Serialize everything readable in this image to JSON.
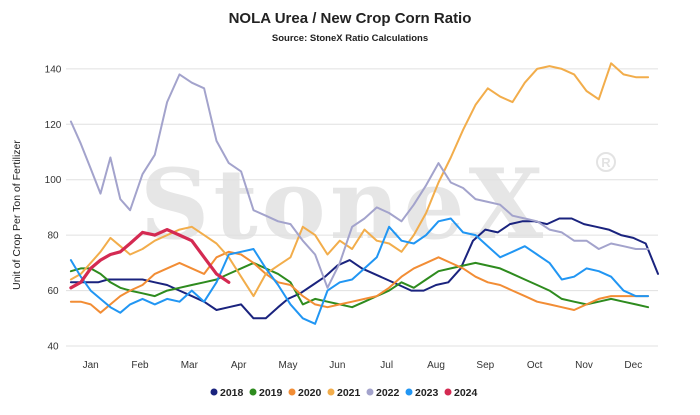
{
  "chart_data": {
    "type": "line",
    "title": "NOLA Urea / New Crop Corn Ratio",
    "subtitle": "Source: StoneX Ratio Calculations",
    "ylabel": "Unit of Crop Per Ton of Fertilizer",
    "xlabel": "",
    "watermark": "StoneX",
    "ylim": [
      40,
      145
    ],
    "yticks": [
      40,
      60,
      80,
      100,
      120,
      140
    ],
    "xlim": [
      0,
      12
    ],
    "x_tick_labels": [
      "Jan",
      "Feb",
      "Mar",
      "Apr",
      "May",
      "Jun",
      "Jul",
      "Aug",
      "Sep",
      "Oct",
      "Nov",
      "Dec"
    ],
    "grid": "horizontal",
    "legend_position": "bottom",
    "series": [
      {
        "name": "2018",
        "color": "#1a237e",
        "x": [
          0.1,
          0.25,
          0.45,
          0.65,
          0.85,
          1.05,
          1.3,
          1.55,
          1.8,
          2.05,
          2.3,
          2.55,
          2.8,
          3.05,
          3.3,
          3.55,
          3.8,
          4.05,
          4.3,
          4.5,
          4.75,
          5.0,
          5.25,
          5.5,
          5.75,
          6.0,
          6.25,
          6.5,
          6.75,
          7.0,
          7.25,
          7.5,
          7.75,
          8.0,
          8.25,
          8.5,
          8.75,
          9.0,
          9.25,
          9.5,
          9.75,
          10.0,
          10.25,
          10.5,
          10.75,
          11.0,
          11.25,
          11.5,
          11.75,
          12.0
        ],
        "y": [
          63,
          63,
          63,
          63,
          64,
          64,
          64,
          64,
          63,
          62,
          60,
          58,
          56,
          53,
          54,
          55,
          50,
          50,
          54,
          57,
          59,
          62,
          65,
          69,
          71,
          68,
          66,
          64,
          62,
          60,
          60,
          62,
          63,
          68,
          78,
          82,
          81,
          84,
          85,
          85,
          84,
          86,
          86,
          84,
          83,
          82,
          80,
          79,
          77,
          66
        ]
      },
      {
        "name": "2019",
        "color": "#2e8b1e",
        "x": [
          0.1,
          0.3,
          0.5,
          0.7,
          0.9,
          1.1,
          1.3,
          1.55,
          1.8,
          2.05,
          2.3,
          2.55,
          2.8,
          3.05,
          3.3,
          3.55,
          3.8,
          4.05,
          4.3,
          4.55,
          4.8,
          5.05,
          5.3,
          5.55,
          5.8,
          6.05,
          6.3,
          6.55,
          6.8,
          7.05,
          7.3,
          7.55,
          7.8,
          8.05,
          8.3,
          8.55,
          8.8,
          9.05,
          9.3,
          9.55,
          9.8,
          10.05,
          10.3,
          10.55,
          10.8,
          11.05,
          11.3,
          11.55,
          11.8
        ],
        "y": [
          67,
          68,
          68,
          66,
          63,
          61,
          60,
          59,
          58,
          60,
          61,
          62,
          63,
          64,
          66,
          68,
          70,
          68,
          66,
          63,
          55,
          57,
          56,
          55,
          54,
          56,
          58,
          60,
          63,
          61,
          64,
          67,
          68,
          69,
          70,
          69,
          68,
          66,
          64,
          62,
          60,
          57,
          56,
          55,
          56,
          57,
          56,
          55,
          54
        ]
      },
      {
        "name": "2020",
        "color": "#f28d35",
        "x": [
          0.1,
          0.3,
          0.5,
          0.7,
          0.9,
          1.1,
          1.3,
          1.55,
          1.8,
          2.05,
          2.3,
          2.55,
          2.8,
          3.05,
          3.3,
          3.55,
          3.8,
          4.05,
          4.3,
          4.55,
          4.8,
          5.05,
          5.3,
          5.55,
          5.8,
          6.05,
          6.3,
          6.55,
          6.8,
          7.05,
          7.3,
          7.55,
          7.8,
          8.05,
          8.3,
          8.55,
          8.8,
          9.05,
          9.3,
          9.55,
          9.8,
          10.05,
          10.3,
          10.55,
          10.8,
          11.05,
          11.3,
          11.55,
          11.8
        ],
        "y": [
          56,
          56,
          55,
          52,
          55,
          58,
          60,
          62,
          66,
          68,
          70,
          68,
          66,
          72,
          74,
          73,
          70,
          66,
          63,
          62,
          58,
          55,
          54,
          55,
          56,
          57,
          58,
          61,
          65,
          68,
          70,
          72,
          70,
          68,
          65,
          63,
          62,
          60,
          58,
          56,
          55,
          54,
          53,
          55,
          57,
          58,
          58,
          58,
          58
        ]
      },
      {
        "name": "2021",
        "color": "#f2ad4b",
        "x": [
          0.1,
          0.3,
          0.5,
          0.7,
          0.9,
          1.1,
          1.3,
          1.55,
          1.8,
          2.05,
          2.3,
          2.55,
          2.8,
          3.05,
          3.3,
          3.55,
          3.8,
          4.05,
          4.3,
          4.55,
          4.8,
          5.05,
          5.3,
          5.55,
          5.8,
          6.05,
          6.3,
          6.55,
          6.8,
          7.05,
          7.3,
          7.55,
          7.8,
          8.05,
          8.3,
          8.55,
          8.8,
          9.05,
          9.3,
          9.55,
          9.8,
          10.05,
          10.3,
          10.55,
          10.8,
          11.05,
          11.3,
          11.55,
          11.8
        ],
        "y": [
          64,
          66,
          70,
          74,
          79,
          76,
          73,
          75,
          78,
          80,
          82,
          83,
          80,
          77,
          72,
          65,
          58,
          66,
          69,
          72,
          83,
          80,
          73,
          78,
          75,
          82,
          78,
          77,
          74,
          80,
          88,
          99,
          108,
          118,
          127,
          133,
          130,
          128,
          135,
          140,
          141,
          140,
          138,
          132,
          129,
          142,
          138,
          137,
          137
        ]
      },
      {
        "name": "2022",
        "color": "#a3a3cc",
        "x": [
          0.1,
          0.3,
          0.5,
          0.7,
          0.9,
          1.1,
          1.3,
          1.55,
          1.8,
          2.05,
          2.3,
          2.55,
          2.8,
          3.05,
          3.3,
          3.55,
          3.8,
          4.05,
          4.3,
          4.55,
          4.8,
          5.05,
          5.3,
          5.55,
          5.8,
          6.05,
          6.3,
          6.55,
          6.8,
          7.05,
          7.3,
          7.55,
          7.8,
          8.05,
          8.3,
          8.55,
          8.8,
          9.05,
          9.3,
          9.55,
          9.8,
          10.05,
          10.3,
          10.55,
          10.8,
          11.05,
          11.3,
          11.55,
          11.8
        ],
        "y": [
          121,
          113,
          104,
          95,
          108,
          93,
          89,
          102,
          109,
          128,
          138,
          135,
          133,
          114,
          106,
          103,
          89,
          87,
          85,
          84,
          78,
          73,
          61,
          70,
          83,
          86,
          90,
          88,
          85,
          91,
          98,
          106,
          99,
          97,
          93,
          92,
          91,
          87,
          86,
          85,
          82,
          81,
          78,
          78,
          75,
          77,
          76,
          75,
          75
        ]
      },
      {
        "name": "2023",
        "color": "#2196f3",
        "x": [
          0.1,
          0.3,
          0.5,
          0.7,
          0.9,
          1.1,
          1.3,
          1.55,
          1.8,
          2.05,
          2.3,
          2.55,
          2.8,
          3.05,
          3.3,
          3.55,
          3.8,
          4.05,
          4.3,
          4.55,
          4.8,
          5.05,
          5.3,
          5.55,
          5.8,
          6.05,
          6.3,
          6.55,
          6.8,
          7.05,
          7.3,
          7.55,
          7.8,
          8.05,
          8.3,
          8.55,
          8.8,
          9.05,
          9.3,
          9.55,
          9.8,
          10.05,
          10.3,
          10.55,
          10.8,
          11.05,
          11.3,
          11.55,
          11.8
        ],
        "y": [
          71,
          65,
          60,
          57,
          54,
          52,
          55,
          57,
          55,
          57,
          56,
          60,
          56,
          63,
          73,
          74,
          75,
          68,
          62,
          55,
          50,
          48,
          60,
          63,
          64,
          68,
          72,
          83,
          78,
          77,
          80,
          85,
          86,
          81,
          80,
          76,
          72,
          74,
          76,
          73,
          70,
          64,
          65,
          68,
          67,
          65,
          60,
          58,
          58
        ]
      },
      {
        "name": "2024",
        "color": "#d42a52",
        "x": [
          0.1,
          0.3,
          0.5,
          0.7,
          0.9,
          1.1,
          1.3,
          1.55,
          1.8,
          2.05,
          2.3,
          2.55,
          2.8,
          3.05,
          3.3
        ],
        "y": [
          61,
          63,
          68,
          71,
          73,
          74,
          77,
          81,
          80,
          82,
          80,
          78,
          72,
          66,
          63
        ]
      }
    ]
  },
  "legend_items": [
    {
      "name": "2018",
      "color": "#1a237e"
    },
    {
      "name": "2019",
      "color": "#2e8b1e"
    },
    {
      "name": "2020",
      "color": "#f28d35"
    },
    {
      "name": "2021",
      "color": "#f2ad4b"
    },
    {
      "name": "2022",
      "color": "#a3a3cc"
    },
    {
      "name": "2023",
      "color": "#2196f3"
    },
    {
      "name": "2024",
      "color": "#d42a52"
    }
  ]
}
